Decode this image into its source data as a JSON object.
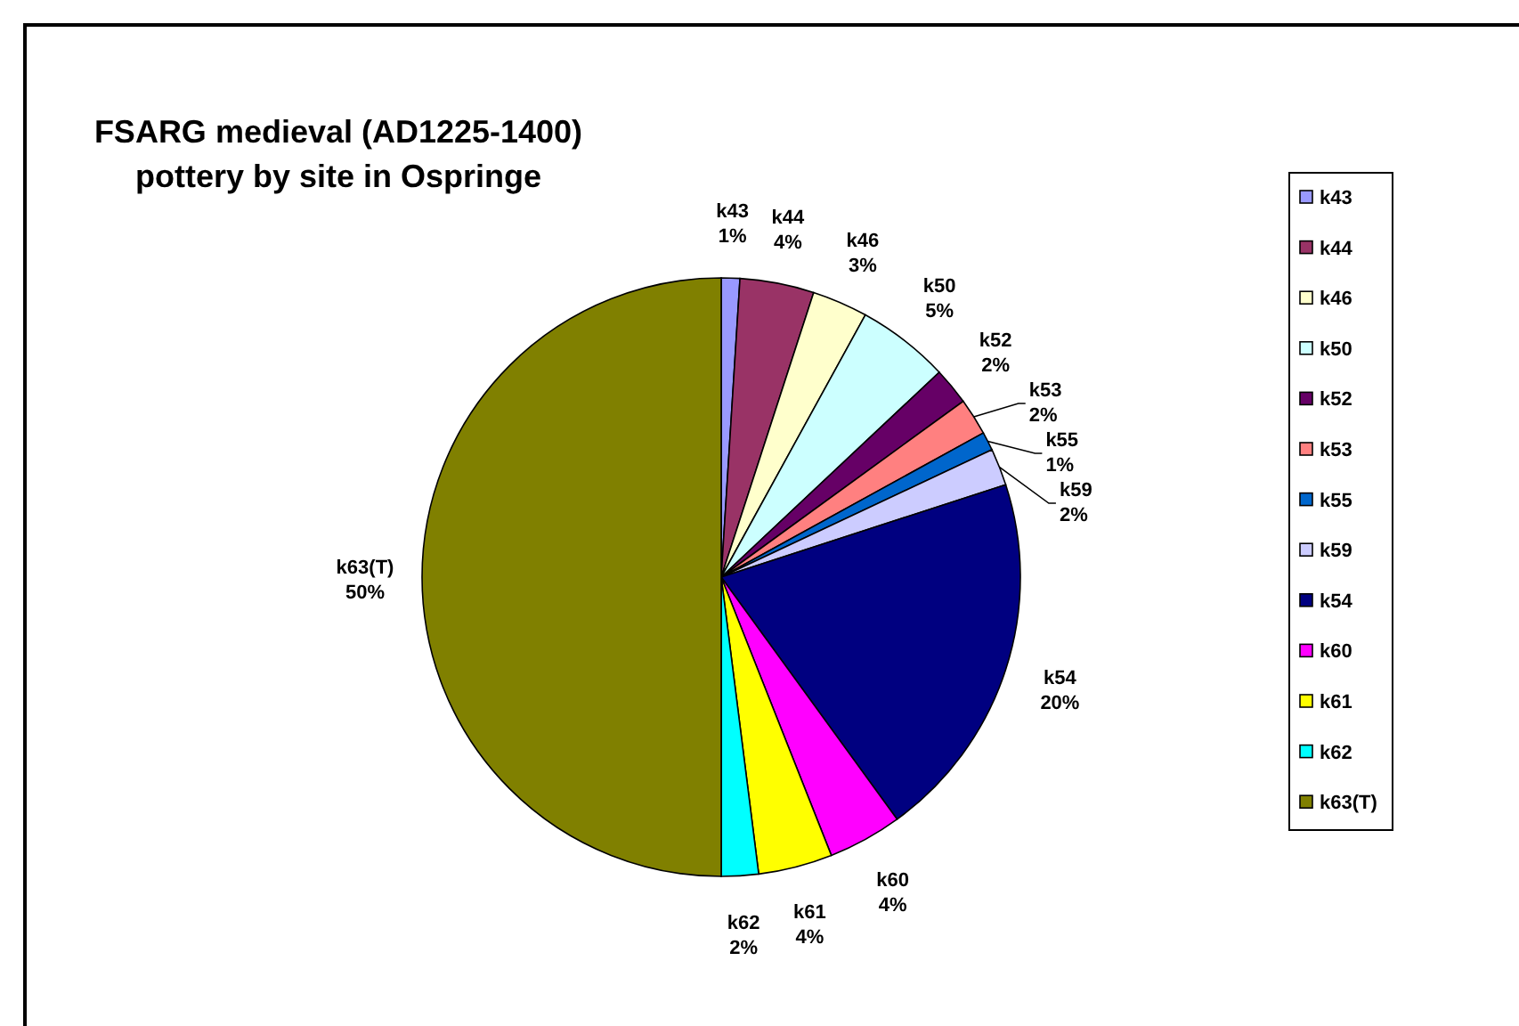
{
  "chart_data": {
    "type": "pie",
    "title": "FSARG medieval (AD1225-1400) pottery by site in Ospringe",
    "categories": [
      "k43",
      "k44",
      "k46",
      "k50",
      "k52",
      "k53",
      "k55",
      "k59",
      "k54",
      "k60",
      "k61",
      "k62",
      "k63(T)"
    ],
    "values": [
      1,
      4,
      3,
      5,
      2,
      2,
      1,
      2,
      20,
      4,
      4,
      2,
      50
    ],
    "colors": [
      "#9999ff",
      "#993366",
      "#ffffcc",
      "#ccffff",
      "#660066",
      "#ff8080",
      "#0066cc",
      "#ccccff",
      "#000080",
      "#ff00ff",
      "#ffff00",
      "#00ffff",
      "#808000"
    ],
    "value_labels": [
      "1%",
      "4%",
      "3%",
      "5%",
      "2%",
      "2%",
      "1%",
      "2%",
      "20%",
      "4%",
      "4%",
      "2%",
      "50%"
    ],
    "legend": "right"
  }
}
